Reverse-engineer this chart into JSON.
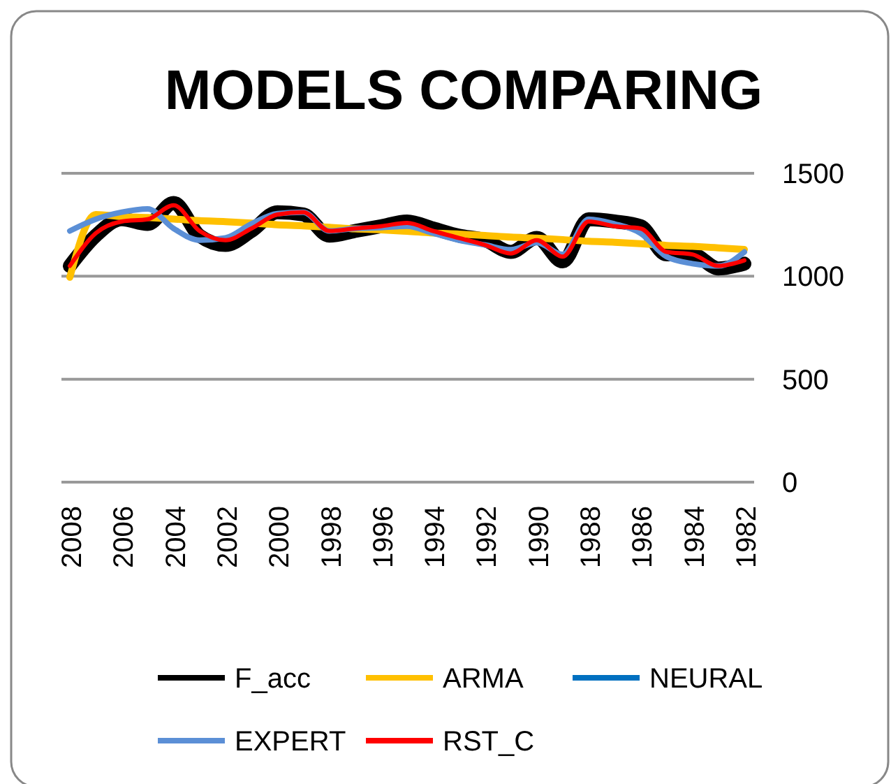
{
  "chart_data": {
    "type": "line",
    "title": "MODELS COMPARING",
    "categories": [
      "2008",
      null,
      "2006",
      null,
      "2004",
      null,
      "2002",
      null,
      "2000",
      null,
      "1998",
      null,
      "1996",
      null,
      "1994",
      null,
      "1992",
      null,
      "1990",
      null,
      "1988",
      null,
      "1986",
      null,
      "1984",
      null,
      "1982"
    ],
    "series": [
      {
        "name": "F_acc",
        "color": "#000000",
        "values": [
          1050,
          1197,
          1277,
          1254,
          1356,
          1197,
          1152,
          1220,
          1311,
          1300,
          1197,
          1220,
          1243,
          1266,
          1232,
          1197,
          1175,
          1118,
          1186,
          1072,
          1277,
          1266,
          1243,
          1106,
          1106,
          1038,
          1061
        ]
      },
      {
        "name": "ARMA",
        "color": "#ffc000",
        "values": [
          995,
          1300,
          1290,
          1285,
          1278,
          1270,
          1265,
          1258,
          1250,
          1245,
          1238,
          1230,
          1225,
          1218,
          1210,
          1205,
          1198,
          1190,
          1185,
          1178,
          1170,
          1165,
          1158,
          1150,
          1145,
          1138,
          1130
        ]
      },
      {
        "name": "NEURAL",
        "color": "#0070c0",
        "values": [
          null,
          null,
          null,
          null,
          null,
          null,
          null,
          null,
          null,
          null,
          null,
          null,
          null,
          null,
          null,
          null,
          null,
          null,
          null,
          null,
          null,
          null,
          null,
          null,
          null,
          null,
          null
        ]
      },
      {
        "name": "EXPERT",
        "color": "#5b8fd6",
        "values": [
          1220,
          1277,
          1311,
          1327,
          1232,
          1175,
          1186,
          1254,
          1304,
          1311,
          1220,
          1232,
          1236,
          1243,
          1209,
          1175,
          1152,
          1129,
          1163,
          1106,
          1277,
          1254,
          1209,
          1095,
          1061,
          1050,
          1118
        ]
      },
      {
        "name": "RST_C",
        "color": "#ff0000",
        "values": [
          1050,
          1209,
          1266,
          1277,
          1345,
          1220,
          1175,
          1232,
          1300,
          1311,
          1220,
          1232,
          1243,
          1259,
          1220,
          1186,
          1152,
          1111,
          1175,
          1095,
          1266,
          1243,
          1232,
          1118,
          1106,
          1050,
          1077
        ]
      }
    ],
    "ylim": [
      0,
      1500
    ],
    "yticks": [
      0,
      500,
      1000,
      1500
    ],
    "grid": "y",
    "legend": "bottom"
  }
}
